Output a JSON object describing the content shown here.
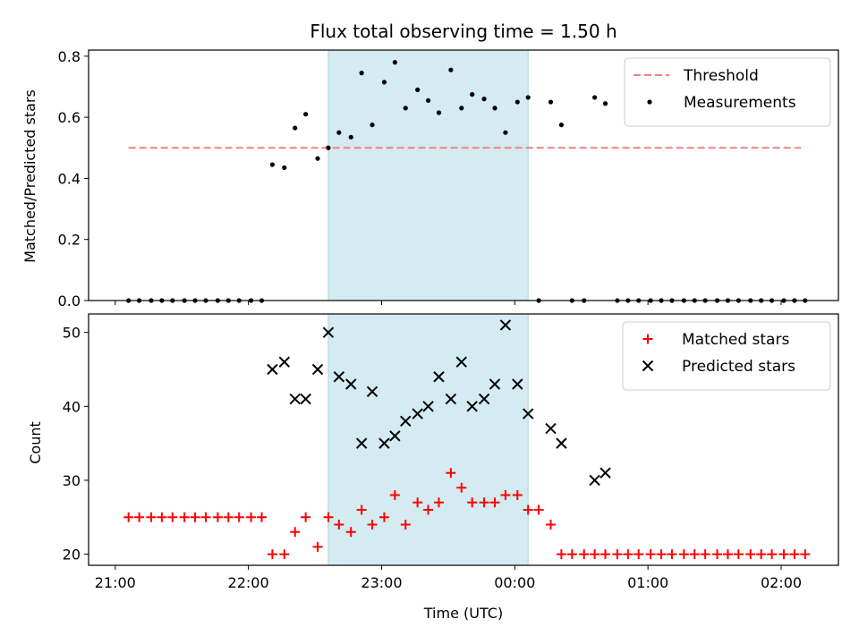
{
  "chart_data": [
    {
      "type": "scatter",
      "title": "Flux total observing time = 1.50 h",
      "ylabel": "Matched/Predicted stars",
      "xlabel": "",
      "xlim_hours": [
        20.8,
        26.43
      ],
      "ylim": [
        0,
        0.82
      ],
      "yticks": [
        0.0,
        0.2,
        0.4,
        0.6,
        0.8
      ],
      "ytick_labels": [
        "0.0",
        "0.2",
        "0.4",
        "0.6",
        "0.8"
      ],
      "xticks": [
        21,
        22,
        23,
        24,
        25,
        26
      ],
      "xtick_labels_visible": false,
      "grid": false,
      "legend_position": "upper-right",
      "shaded_interval_hours": [
        22.6,
        24.1
      ],
      "shade_color": "#d4ebf1",
      "threshold": {
        "name": "Threshold",
        "y": 0.5,
        "x_range": [
          21.1,
          26.15
        ],
        "color": "#f28080",
        "style": "dashed"
      },
      "series": [
        {
          "name": "Measurements",
          "marker": "dot",
          "color": "#000000",
          "points": [
            [
              21.1,
              0
            ],
            [
              21.18,
              0
            ],
            [
              21.27,
              0
            ],
            [
              21.35,
              0
            ],
            [
              21.43,
              0
            ],
            [
              21.52,
              0
            ],
            [
              21.6,
              0
            ],
            [
              21.68,
              0
            ],
            [
              21.77,
              0
            ],
            [
              21.85,
              0
            ],
            [
              21.93,
              0
            ],
            [
              22.02,
              0
            ],
            [
              22.1,
              0
            ],
            [
              22.18,
              0.445
            ],
            [
              22.27,
              0.435
            ],
            [
              22.35,
              0.565
            ],
            [
              22.43,
              0.61
            ],
            [
              22.52,
              0.465
            ],
            [
              22.6,
              0.5
            ],
            [
              22.68,
              0.55
            ],
            [
              22.77,
              0.535
            ],
            [
              22.85,
              0.745
            ],
            [
              22.93,
              0.575
            ],
            [
              23.02,
              0.715
            ],
            [
              23.1,
              0.78
            ],
            [
              23.18,
              0.63
            ],
            [
              23.27,
              0.69
            ],
            [
              23.35,
              0.655
            ],
            [
              23.43,
              0.615
            ],
            [
              23.52,
              0.755
            ],
            [
              23.6,
              0.63
            ],
            [
              23.68,
              0.675
            ],
            [
              23.77,
              0.66
            ],
            [
              23.85,
              0.63
            ],
            [
              23.93,
              0.55
            ],
            [
              24.02,
              0.65
            ],
            [
              24.1,
              0.665
            ],
            [
              24.18,
              0
            ],
            [
              24.27,
              0.65
            ],
            [
              24.35,
              0.575
            ],
            [
              24.43,
              0
            ],
            [
              24.52,
              0
            ],
            [
              24.6,
              0.665
            ],
            [
              24.68,
              0.645
            ],
            [
              24.77,
              0
            ],
            [
              24.85,
              0
            ],
            [
              24.93,
              0
            ],
            [
              25.02,
              0
            ],
            [
              25.1,
              0
            ],
            [
              25.18,
              0
            ],
            [
              25.27,
              0
            ],
            [
              25.35,
              0
            ],
            [
              25.43,
              0
            ],
            [
              25.52,
              0
            ],
            [
              25.6,
              0
            ],
            [
              25.68,
              0
            ],
            [
              25.77,
              0
            ],
            [
              25.85,
              0
            ],
            [
              25.93,
              0
            ],
            [
              26.02,
              0
            ],
            [
              26.1,
              0
            ],
            [
              26.18,
              0
            ]
          ]
        }
      ]
    },
    {
      "type": "scatter",
      "title": "",
      "xlabel": "Time (UTC)",
      "ylabel": "Count",
      "xlim_hours": [
        20.8,
        26.43
      ],
      "ylim": [
        18.5,
        52.5
      ],
      "yticks": [
        20,
        30,
        40,
        50
      ],
      "ytick_labels": [
        "20",
        "30",
        "40",
        "50"
      ],
      "xticks": [
        21,
        22,
        23,
        24,
        25,
        26
      ],
      "xtick_labels": [
        "21:00",
        "22:00",
        "23:00",
        "00:00",
        "01:00",
        "02:00"
      ],
      "grid": false,
      "legend_position": "upper-right",
      "shaded_interval_hours": [
        22.6,
        24.1
      ],
      "shade_color": "#d4ebf1",
      "series": [
        {
          "name": "Matched stars",
          "marker": "plus",
          "color": "#ff0000",
          "points": [
            [
              21.1,
              25
            ],
            [
              21.18,
              25
            ],
            [
              21.27,
              25
            ],
            [
              21.35,
              25
            ],
            [
              21.43,
              25
            ],
            [
              21.52,
              25
            ],
            [
              21.6,
              25
            ],
            [
              21.68,
              25
            ],
            [
              21.77,
              25
            ],
            [
              21.85,
              25
            ],
            [
              21.93,
              25
            ],
            [
              22.02,
              25
            ],
            [
              22.1,
              25
            ],
            [
              22.18,
              20
            ],
            [
              22.27,
              20
            ],
            [
              22.35,
              23
            ],
            [
              22.43,
              25
            ],
            [
              22.52,
              21
            ],
            [
              22.6,
              25
            ],
            [
              22.68,
              24
            ],
            [
              22.77,
              23
            ],
            [
              22.85,
              26
            ],
            [
              22.93,
              24
            ],
            [
              23.02,
              25
            ],
            [
              23.1,
              28
            ],
            [
              23.18,
              24
            ],
            [
              23.27,
              27
            ],
            [
              23.35,
              26
            ],
            [
              23.43,
              27
            ],
            [
              23.52,
              31
            ],
            [
              23.6,
              29
            ],
            [
              23.68,
              27
            ],
            [
              23.77,
              27
            ],
            [
              23.85,
              27
            ],
            [
              23.93,
              28
            ],
            [
              24.02,
              28
            ],
            [
              24.1,
              26
            ],
            [
              24.18,
              26
            ],
            [
              24.27,
              24
            ],
            [
              24.35,
              20
            ],
            [
              24.43,
              20
            ],
            [
              24.52,
              20
            ],
            [
              24.6,
              20
            ],
            [
              24.68,
              20
            ],
            [
              24.77,
              20
            ],
            [
              24.85,
              20
            ],
            [
              24.93,
              20
            ],
            [
              25.02,
              20
            ],
            [
              25.1,
              20
            ],
            [
              25.18,
              20
            ],
            [
              25.27,
              20
            ],
            [
              25.35,
              20
            ],
            [
              25.43,
              20
            ],
            [
              25.52,
              20
            ],
            [
              25.6,
              20
            ],
            [
              25.68,
              20
            ],
            [
              25.77,
              20
            ],
            [
              25.85,
              20
            ],
            [
              25.93,
              20
            ],
            [
              26.02,
              20
            ],
            [
              26.1,
              20
            ],
            [
              26.18,
              20
            ]
          ]
        },
        {
          "name": "Predicted stars",
          "marker": "x",
          "color": "#000000",
          "points": [
            [
              22.18,
              45
            ],
            [
              22.27,
              46
            ],
            [
              22.35,
              41
            ],
            [
              22.43,
              41
            ],
            [
              22.52,
              45
            ],
            [
              22.6,
              50
            ],
            [
              22.68,
              44
            ],
            [
              22.77,
              43
            ],
            [
              22.85,
              35
            ],
            [
              22.93,
              42
            ],
            [
              23.02,
              35
            ],
            [
              23.1,
              36
            ],
            [
              23.18,
              38
            ],
            [
              23.27,
              39
            ],
            [
              23.35,
              40
            ],
            [
              23.43,
              44
            ],
            [
              23.52,
              41
            ],
            [
              23.6,
              46
            ],
            [
              23.68,
              40
            ],
            [
              23.77,
              41
            ],
            [
              23.85,
              43
            ],
            [
              23.93,
              51
            ],
            [
              24.02,
              43
            ],
            [
              24.1,
              39
            ],
            [
              24.27,
              37
            ],
            [
              24.35,
              35
            ],
            [
              24.6,
              30
            ],
            [
              24.68,
              31
            ]
          ]
        }
      ]
    }
  ]
}
